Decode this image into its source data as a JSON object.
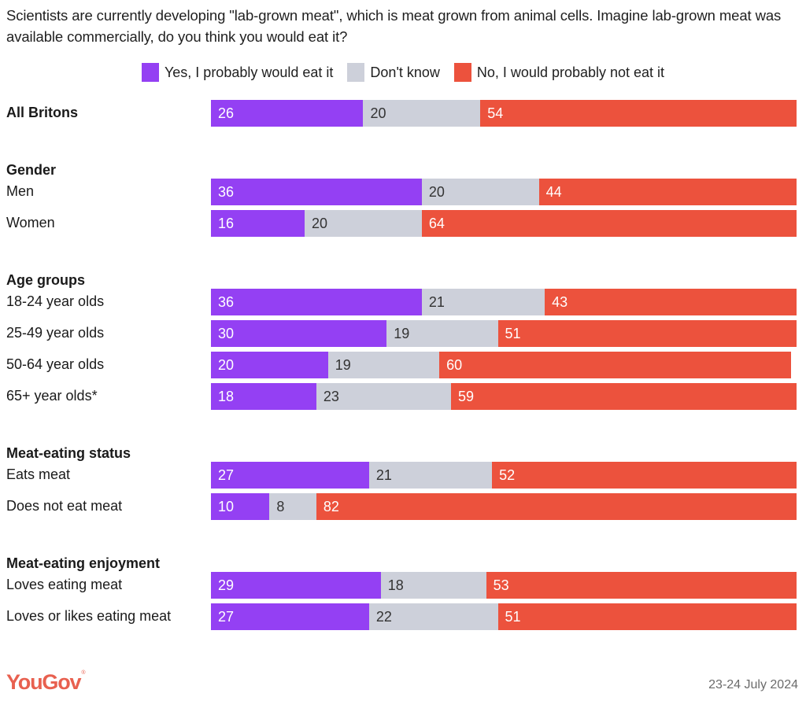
{
  "chart_data": {
    "type": "bar",
    "orientation": "horizontal-stacked-100",
    "title": "Scientists are currently developing \"lab-grown meat\", which is meat grown from animal cells. Imagine lab-grown meat was available commercially, do you think you would eat it?",
    "legend_position": "top-center",
    "series": [
      {
        "name": "Yes, I probably would eat it",
        "color": "#9440f3",
        "label_color": "#ffffff"
      },
      {
        "name": "Don't know",
        "color": "#cdd0da",
        "label_color": "#333333"
      },
      {
        "name": "No, I would probably not eat it",
        "color": "#ec523d",
        "label_color": "#ffffff"
      }
    ],
    "groups": [
      {
        "header": "",
        "rows": [
          {
            "label": "All Britons",
            "bold": true,
            "values": [
              26,
              20,
              54
            ]
          }
        ]
      },
      {
        "header": "Gender",
        "rows": [
          {
            "label": "Men",
            "values": [
              36,
              20,
              44
            ]
          },
          {
            "label": "Women",
            "values": [
              16,
              20,
              64
            ]
          }
        ]
      },
      {
        "header": "Age groups",
        "rows": [
          {
            "label": "18-24 year olds",
            "values": [
              36,
              21,
              43
            ]
          },
          {
            "label": "25-49 year olds",
            "values": [
              30,
              19,
              51
            ]
          },
          {
            "label": "50-64 year olds",
            "values": [
              20,
              19,
              60
            ]
          },
          {
            "label": "65+ year olds*",
            "values": [
              18,
              23,
              59
            ]
          }
        ]
      },
      {
        "header": "Meat-eating status",
        "rows": [
          {
            "label": "Eats meat",
            "values": [
              27,
              21,
              52
            ]
          },
          {
            "label": "Does not eat meat",
            "values": [
              10,
              8,
              82
            ]
          }
        ]
      },
      {
        "header": "Meat-eating enjoyment",
        "rows": [
          {
            "label": "Loves eating meat",
            "values": [
              29,
              18,
              53
            ]
          },
          {
            "label": "Loves or likes eating meat",
            "values": [
              27,
              22,
              51
            ]
          }
        ]
      }
    ],
    "xlim": [
      0,
      100
    ],
    "grid": false
  },
  "footer": {
    "brand": "YouGov",
    "date": "23-24 July 2024"
  }
}
